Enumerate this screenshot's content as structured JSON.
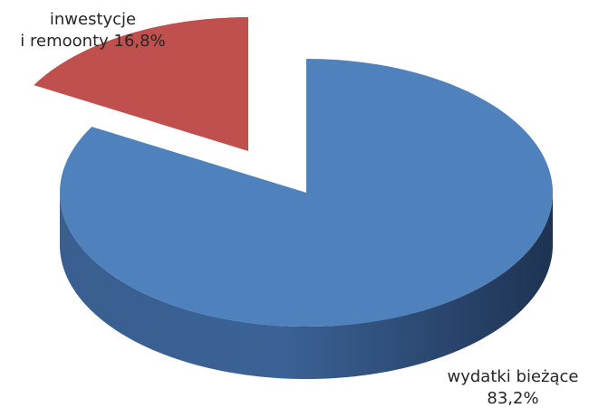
{
  "chart_data": {
    "type": "pie",
    "style": "3d-exploded",
    "title": "",
    "slices": [
      {
        "label_line1": "inwestycje",
        "label_line2": "i remoonty",
        "value": 16.8,
        "value_label": "16,8%",
        "color": "#C0504D",
        "exploded": true
      },
      {
        "label_line1": "wydatki bieżące",
        "label_line2": "",
        "value": 83.2,
        "value_label": "83,2%",
        "color": "#4F81BD",
        "exploded": false
      }
    ],
    "legend": "none"
  }
}
